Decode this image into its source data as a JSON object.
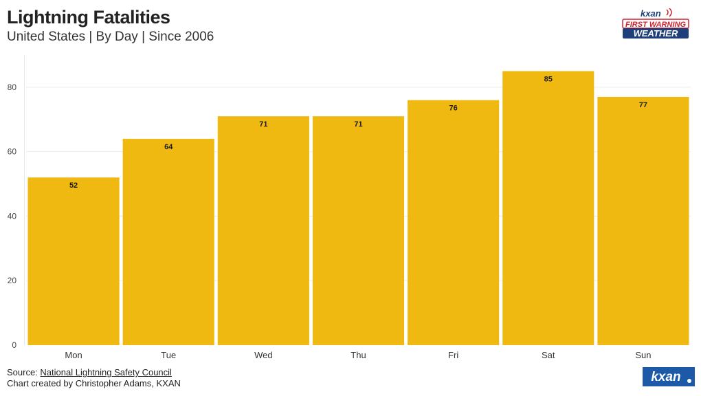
{
  "header": {
    "title": "Lightning Fatalities",
    "subtitle": "United States | By Day | Since 2006"
  },
  "footer": {
    "source_prefix": "Source: ",
    "source_link": "National Lightning Safety Council",
    "credit": "Chart created by Christopher Adams, KXAN"
  },
  "logos": {
    "top_brand": "kxan",
    "top_line1": "FIRST WARNING",
    "top_line2": "WEATHER",
    "bottom_brand": "kxan"
  },
  "colors": {
    "bar": "#F0B912",
    "grid": "#EBEBEB",
    "text": "#222222",
    "logo_red": "#D0202E",
    "logo_navy": "#1E3F7A",
    "logo_blue": "#1C5AA8"
  },
  "chart_data": {
    "type": "bar",
    "categories": [
      "Mon",
      "Tue",
      "Wed",
      "Thu",
      "Fri",
      "Sat",
      "Sun"
    ],
    "values": [
      52,
      64,
      71,
      71,
      76,
      85,
      77
    ],
    "title": "Lightning Fatalities",
    "subtitle": "United States | By Day | Since 2006",
    "xlabel": "",
    "ylabel": "",
    "ylim": [
      0,
      90
    ],
    "yticks": [
      0,
      20,
      40,
      60,
      80
    ],
    "grid": true,
    "data_labels": true
  }
}
